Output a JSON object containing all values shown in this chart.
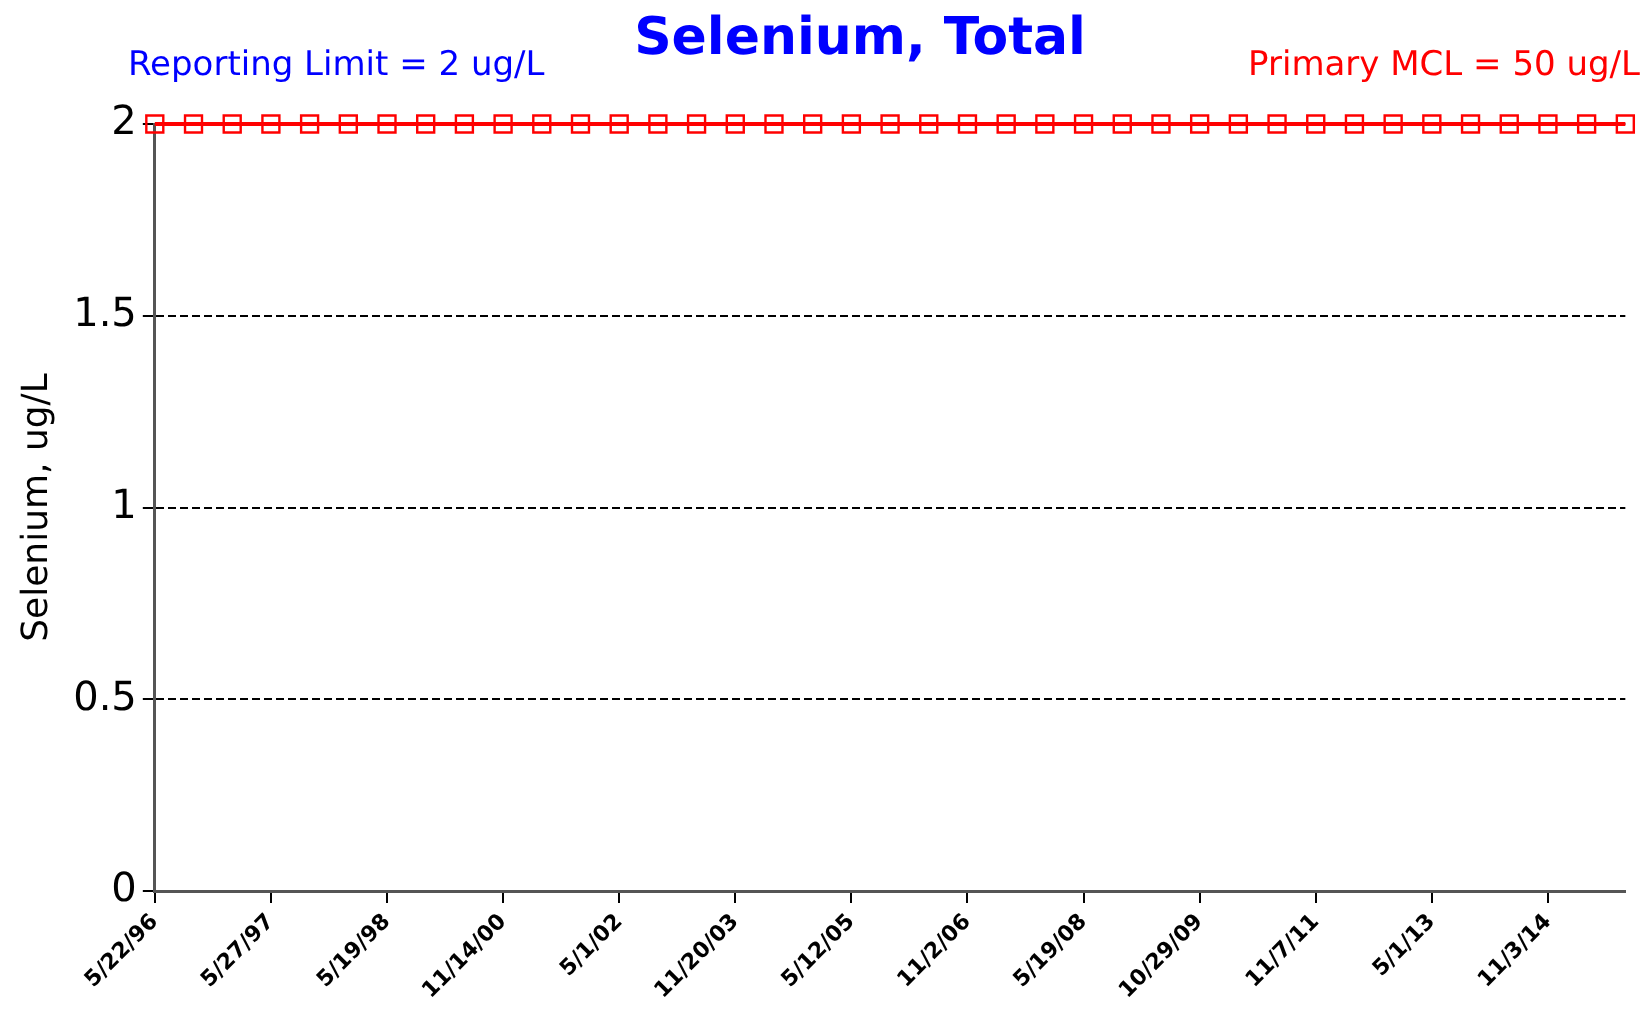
{
  "chart_data": {
    "type": "line",
    "title": "Selenium, Total",
    "annotations": [
      "Reporting Limit = 2 ug/L",
      "Primary MCL = 50 ug/L"
    ],
    "ylabel": "Selenium, ug/L",
    "categories": [
      "5/22/96",
      null,
      null,
      "5/27/97",
      null,
      null,
      "5/19/98",
      null,
      null,
      "11/14/00",
      null,
      null,
      "5/1/02",
      null,
      null,
      "11/20/03",
      null,
      null,
      "5/12/05",
      null,
      null,
      "11/2/06",
      null,
      null,
      "5/19/08",
      null,
      null,
      "10/29/09",
      null,
      null,
      "11/7/11",
      null,
      null,
      "5/1/13",
      null,
      null,
      "11/3/14",
      null,
      null
    ],
    "series": [
      {
        "color": "#ff0000",
        "values": [
          2,
          2,
          2,
          2,
          2,
          2,
          2,
          2,
          2,
          2,
          2,
          2,
          2,
          2,
          2,
          2,
          2,
          2,
          2,
          2,
          2,
          2,
          2,
          2,
          2,
          2,
          2,
          2,
          2,
          2,
          2,
          2,
          2,
          2,
          2,
          2,
          2,
          2,
          2
        ]
      }
    ],
    "ylim": [
      0,
      2
    ],
    "yticks": [
      0,
      0.5,
      1,
      1.5,
      2
    ],
    "grid": "y",
    "legend": false,
    "marker": "square",
    "line_style": "solid"
  }
}
